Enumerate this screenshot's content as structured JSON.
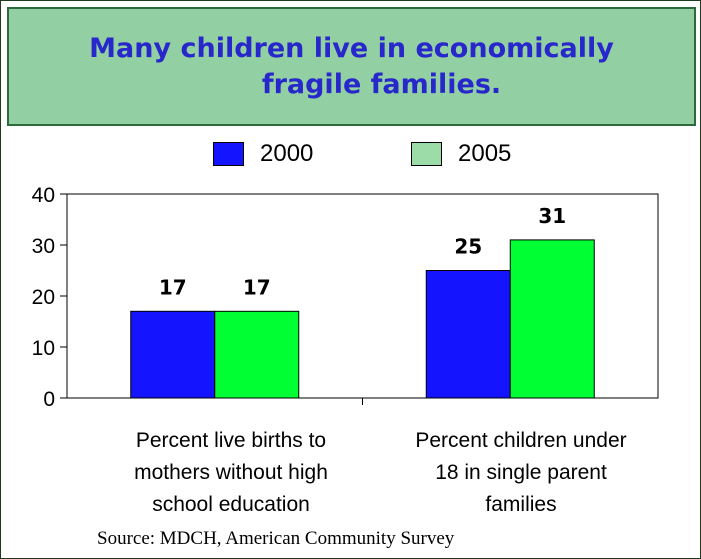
{
  "title_line1": "Many children live in economically",
  "title_line2": "fragile families.",
  "source": "Source: MDCH, American Community Survey",
  "colors": {
    "banner": "#92cfa2",
    "title": "#2727cc",
    "series_2000": "#1414ff",
    "series_2005": "#00ff33"
  },
  "chart_data": {
    "type": "bar",
    "categories": [
      "Percent live births to mothers without high school education",
      "Percent children under 18 in single parent families"
    ],
    "category_lines": [
      [
        "Percent live births to",
        "mothers without high",
        "school education"
      ],
      [
        "Percent children under",
        "18 in single parent",
        "families"
      ]
    ],
    "series": [
      {
        "name": "2000",
        "values": [
          17,
          25
        ],
        "labels": [
          "17",
          "25"
        ],
        "color": "#1414ff"
      },
      {
        "name": "2005",
        "values": [
          17,
          31
        ],
        "labels": [
          "17",
          "31"
        ],
        "color": "#00ff33"
      }
    ],
    "yticks": [
      "0",
      "10",
      "20",
      "30",
      "40"
    ],
    "ylim": [
      0,
      40
    ],
    "grid": false,
    "legend": "top"
  }
}
